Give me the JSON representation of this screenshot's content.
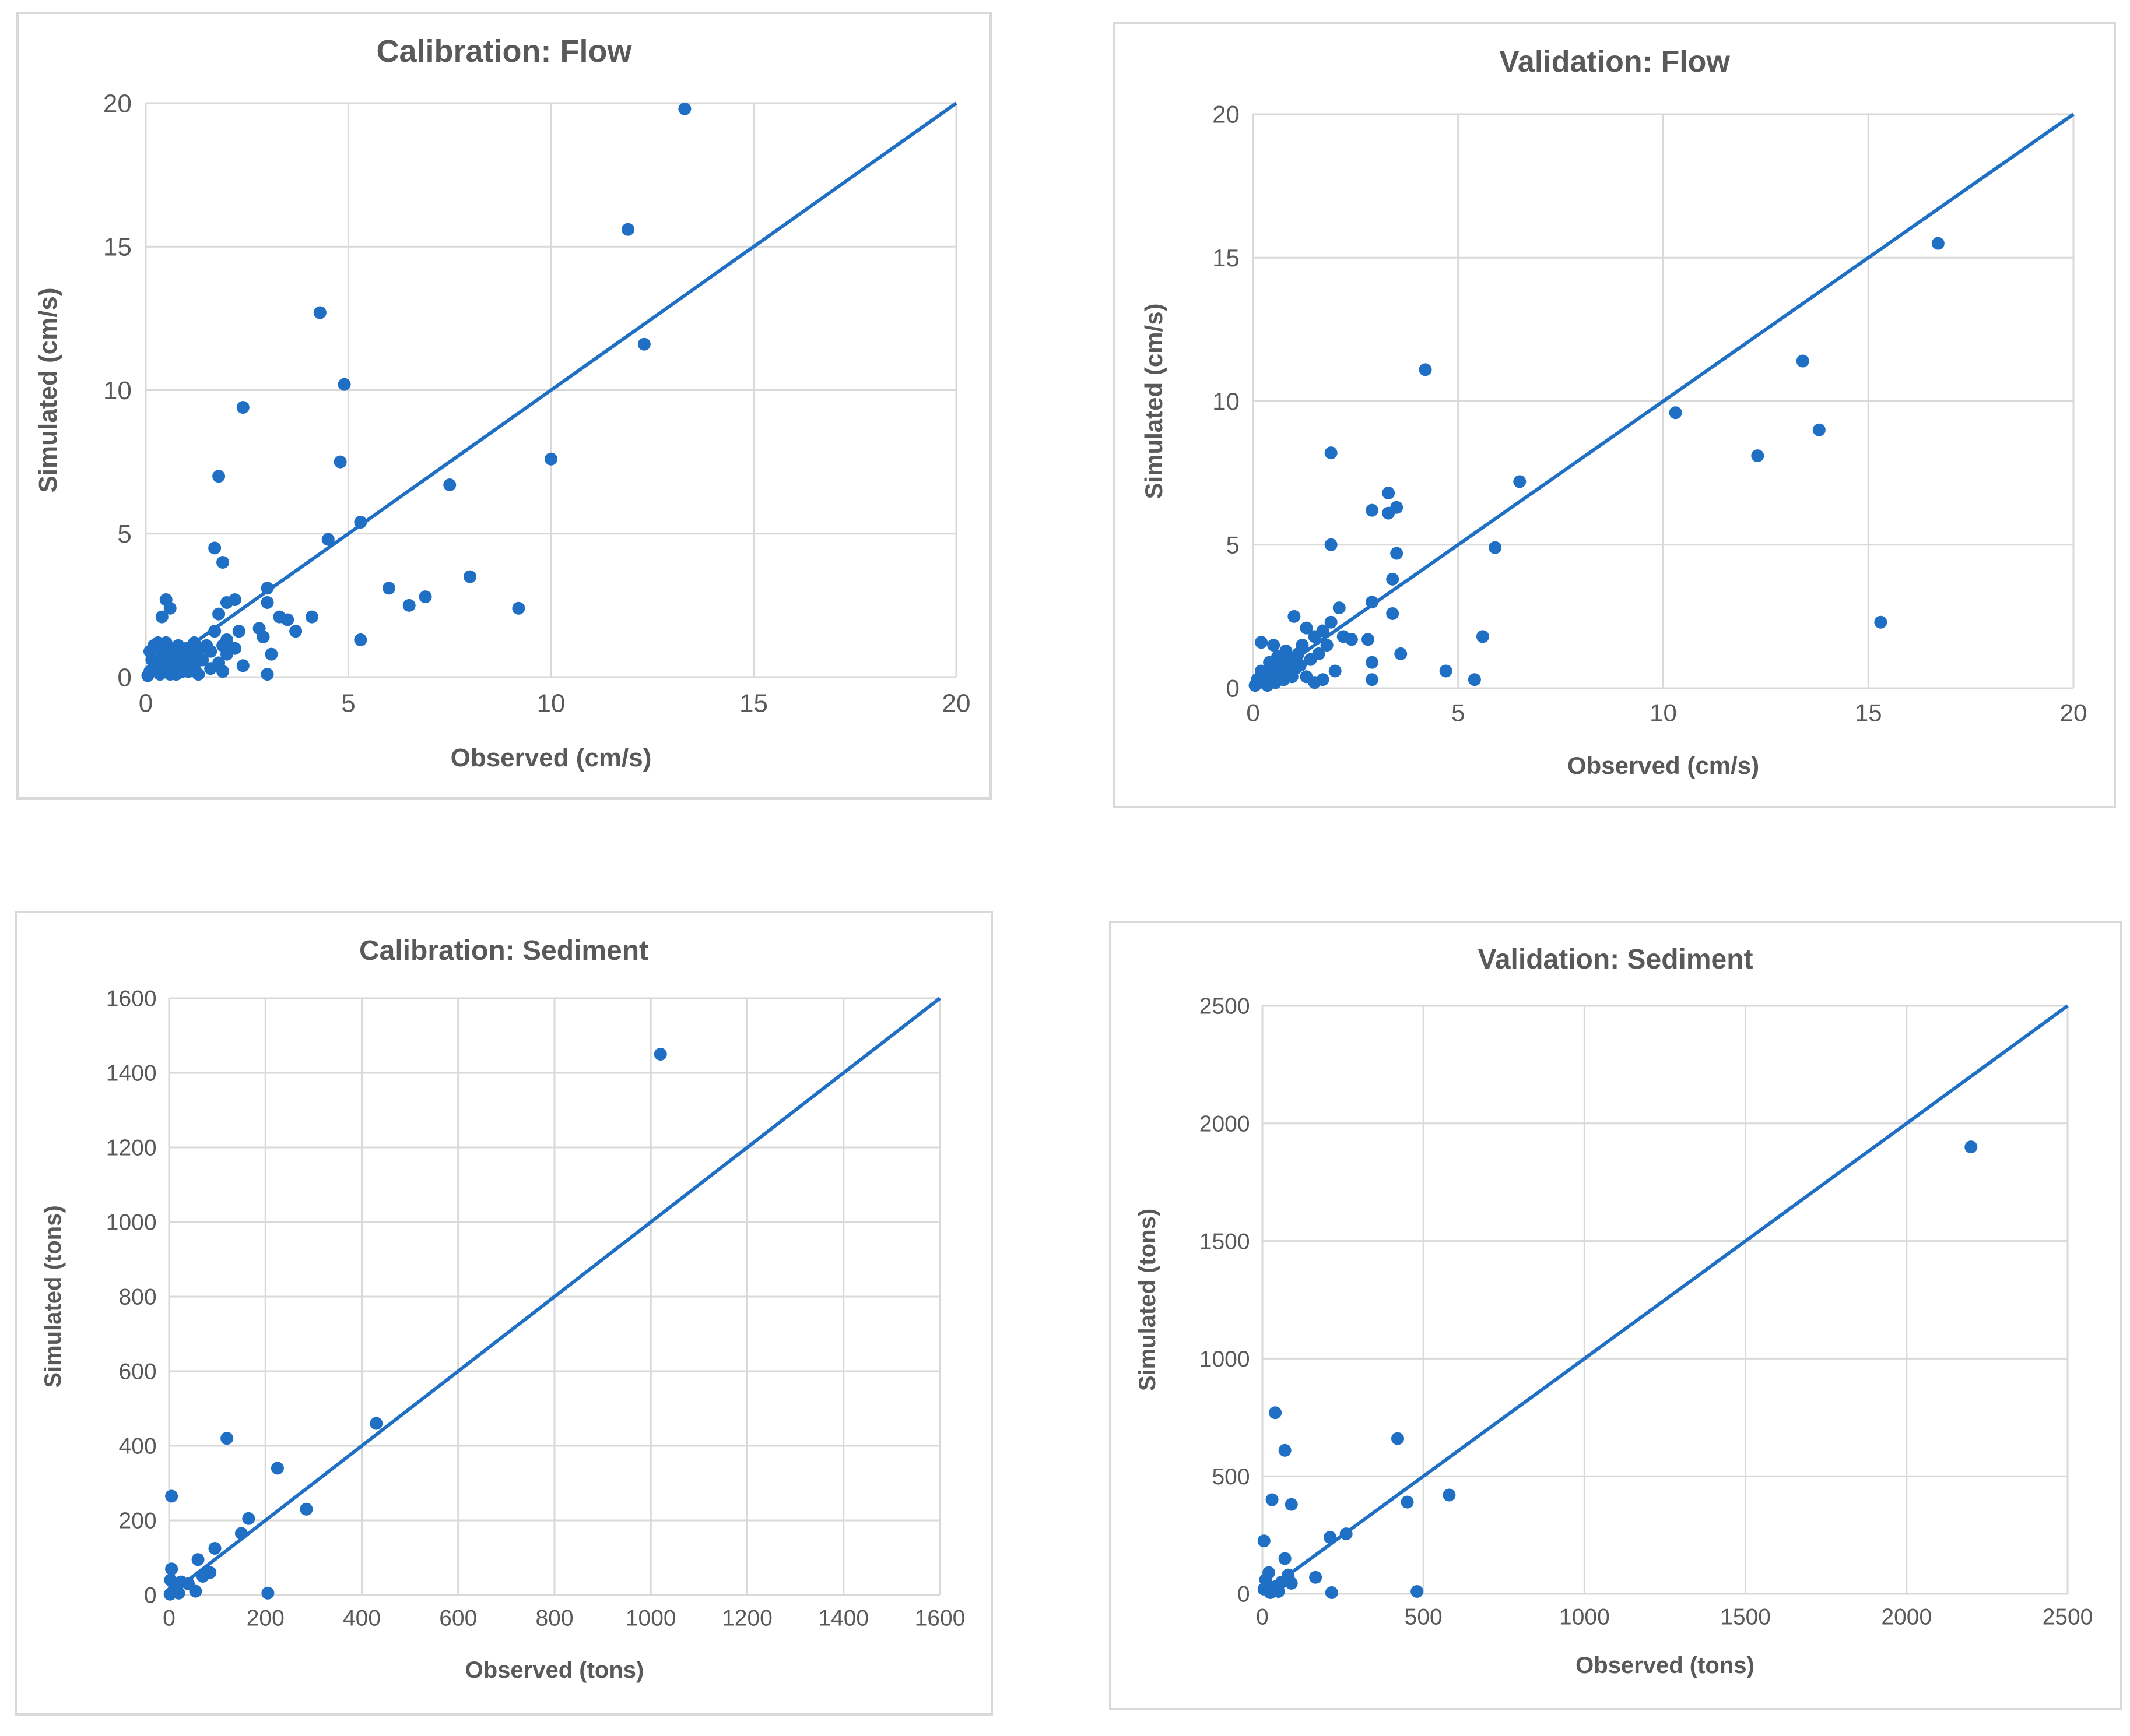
{
  "colors": {
    "series": "#1f6fc5",
    "grid": "#d9d9d9",
    "text": "#595959"
  },
  "chart_data": [
    {
      "id": "cal-flow",
      "type": "scatter",
      "title": "Calibration: Flow",
      "xlabel": "Observed  (cm/s)",
      "ylabel": "Simulated (cm/s)",
      "xlim": [
        0,
        20
      ],
      "ylim": [
        0,
        20
      ],
      "xticks": [
        0,
        5,
        10,
        15,
        20
      ],
      "yticks": [
        0,
        5,
        10,
        15,
        20
      ],
      "trendline": {
        "x": [
          0,
          20
        ],
        "y": [
          0,
          20
        ]
      },
      "points": [
        [
          13.3,
          19.8
        ],
        [
          11.9,
          15.6
        ],
        [
          12.3,
          11.6
        ],
        [
          4.3,
          12.7
        ],
        [
          2.4,
          9.4
        ],
        [
          4.9,
          10.2
        ],
        [
          4.8,
          7.5
        ],
        [
          1.8,
          7.0
        ],
        [
          10.0,
          7.6
        ],
        [
          7.5,
          6.7
        ],
        [
          8.0,
          3.5
        ],
        [
          9.2,
          2.4
        ],
        [
          5.3,
          5.4
        ],
        [
          4.5,
          4.8
        ],
        [
          1.7,
          4.5
        ],
        [
          1.9,
          4.0
        ],
        [
          6.0,
          3.1
        ],
        [
          6.9,
          2.8
        ],
        [
          6.5,
          2.5
        ],
        [
          5.3,
          1.3
        ],
        [
          3.0,
          3.1
        ],
        [
          3.0,
          2.6
        ],
        [
          3.3,
          2.1
        ],
        [
          3.5,
          2.0
        ],
        [
          4.1,
          2.1
        ],
        [
          3.7,
          1.6
        ],
        [
          2.2,
          2.7
        ],
        [
          2.0,
          2.6
        ],
        [
          1.8,
          2.2
        ],
        [
          0.5,
          2.7
        ],
        [
          0.6,
          2.4
        ],
        [
          0.4,
          2.1
        ],
        [
          2.8,
          1.7
        ],
        [
          2.9,
          1.4
        ],
        [
          2.3,
          1.6
        ],
        [
          3.1,
          0.8
        ],
        [
          3.0,
          0.1
        ],
        [
          2.0,
          1.3
        ],
        [
          1.7,
          1.6
        ],
        [
          1.5,
          1.1
        ],
        [
          1.3,
          0.9
        ],
        [
          1.1,
          0.7
        ],
        [
          1.0,
          1.0
        ],
        [
          0.9,
          0.8
        ],
        [
          0.8,
          1.1
        ],
        [
          0.7,
          0.6
        ],
        [
          0.6,
          0.9
        ],
        [
          0.5,
          1.2
        ],
        [
          0.4,
          0.7
        ],
        [
          0.3,
          1.0
        ],
        [
          0.2,
          0.4
        ],
        [
          0.1,
          0.2
        ],
        [
          0.05,
          0.05
        ],
        [
          0.15,
          0.6
        ],
        [
          0.25,
          0.3
        ],
        [
          0.35,
          0.1
        ],
        [
          0.45,
          0.5
        ],
        [
          0.55,
          0.2
        ],
        [
          0.65,
          0.4
        ],
        [
          0.75,
          0.1
        ],
        [
          0.85,
          0.3
        ],
        [
          0.95,
          0.5
        ],
        [
          1.05,
          0.2
        ],
        [
          1.2,
          0.4
        ],
        [
          1.4,
          0.6
        ],
        [
          1.6,
          0.3
        ],
        [
          1.8,
          0.5
        ],
        [
          2.0,
          0.8
        ],
        [
          2.2,
          1.0
        ],
        [
          1.6,
          0.9
        ],
        [
          1.9,
          1.1
        ],
        [
          1.2,
          1.2
        ],
        [
          0.3,
          1.2
        ],
        [
          0.1,
          0.9
        ],
        [
          0.2,
          1.1
        ],
        [
          0.6,
          0.1
        ],
        [
          0.9,
          0.2
        ],
        [
          1.3,
          0.1
        ],
        [
          1.9,
          0.2
        ],
        [
          2.4,
          0.4
        ]
      ]
    },
    {
      "id": "val-flow",
      "type": "scatter",
      "title": "Validation: Flow",
      "xlabel": "Observed (cm/s)",
      "ylabel": "Simulated (cm/s)",
      "xlim": [
        0,
        20
      ],
      "ylim": [
        0,
        20
      ],
      "xticks": [
        0,
        5,
        10,
        15,
        20
      ],
      "yticks": [
        0,
        5,
        10,
        15,
        20
      ],
      "trendline": {
        "x": [
          0,
          20
        ],
        "y": [
          0,
          20
        ]
      },
      "points": [
        [
          16.7,
          15.5
        ],
        [
          13.4,
          11.4
        ],
        [
          13.8,
          9.0
        ],
        [
          12.3,
          8.1
        ],
        [
          10.3,
          9.6
        ],
        [
          15.3,
          2.3
        ],
        [
          4.2,
          11.1
        ],
        [
          1.9,
          8.2
        ],
        [
          6.5,
          7.2
        ],
        [
          5.9,
          4.9
        ],
        [
          5.6,
          1.8
        ],
        [
          4.7,
          0.6
        ],
        [
          5.4,
          0.3
        ],
        [
          3.3,
          6.8
        ],
        [
          3.5,
          6.3
        ],
        [
          3.3,
          6.1
        ],
        [
          2.9,
          6.2
        ],
        [
          3.5,
          4.7
        ],
        [
          1.9,
          5.0
        ],
        [
          3.4,
          3.8
        ],
        [
          2.9,
          3.0
        ],
        [
          3.4,
          2.6
        ],
        [
          3.6,
          1.2
        ],
        [
          2.9,
          0.9
        ],
        [
          2.9,
          0.3
        ],
        [
          2.1,
          2.8
        ],
        [
          2.8,
          1.7
        ],
        [
          2.4,
          1.7
        ],
        [
          2.2,
          1.8
        ],
        [
          1.9,
          2.3
        ],
        [
          1.7,
          2.0
        ],
        [
          1.5,
          1.8
        ],
        [
          1.3,
          2.1
        ],
        [
          1.0,
          2.5
        ],
        [
          1.2,
          1.5
        ],
        [
          1.1,
          1.2
        ],
        [
          0.9,
          1.0
        ],
        [
          0.8,
          1.3
        ],
        [
          0.7,
          0.9
        ],
        [
          0.6,
          1.1
        ],
        [
          0.5,
          0.7
        ],
        [
          0.4,
          0.9
        ],
        [
          0.3,
          0.5
        ],
        [
          0.2,
          0.6
        ],
        [
          0.1,
          0.3
        ],
        [
          0.05,
          0.1
        ],
        [
          0.2,
          1.6
        ],
        [
          0.5,
          1.5
        ],
        [
          0.15,
          0.2
        ],
        [
          0.25,
          0.4
        ],
        [
          0.35,
          0.1
        ],
        [
          0.45,
          0.3
        ],
        [
          0.55,
          0.2
        ],
        [
          0.65,
          0.5
        ],
        [
          0.75,
          0.3
        ],
        [
          0.85,
          0.6
        ],
        [
          0.95,
          0.4
        ],
        [
          1.05,
          0.7
        ],
        [
          1.15,
          0.8
        ],
        [
          1.4,
          1.0
        ],
        [
          1.6,
          1.2
        ],
        [
          1.8,
          1.5
        ],
        [
          2.0,
          0.6
        ],
        [
          1.7,
          0.3
        ],
        [
          1.5,
          0.2
        ],
        [
          1.3,
          0.4
        ]
      ]
    },
    {
      "id": "cal-sed",
      "type": "scatter",
      "title": "Calibration: Sediment",
      "xlabel": "Observed (tons)",
      "ylabel": "Simulated (tons)",
      "xlim": [
        0,
        1600
      ],
      "ylim": [
        0,
        1600
      ],
      "xticks": [
        0,
        200,
        400,
        600,
        800,
        1000,
        1200,
        1400,
        1600
      ],
      "yticks": [
        0,
        200,
        400,
        600,
        800,
        1000,
        1200,
        1400,
        1600
      ],
      "trendline": {
        "x": [
          0,
          1600
        ],
        "y": [
          0,
          1600
        ]
      },
      "points": [
        [
          1020,
          1450
        ],
        [
          430,
          460
        ],
        [
          120,
          420
        ],
        [
          225,
          340
        ],
        [
          5,
          265
        ],
        [
          285,
          230
        ],
        [
          165,
          205
        ],
        [
          150,
          165
        ],
        [
          95,
          125
        ],
        [
          60,
          95
        ],
        [
          85,
          60
        ],
        [
          70,
          50
        ],
        [
          40,
          30
        ],
        [
          25,
          35
        ],
        [
          15,
          20
        ],
        [
          10,
          15
        ],
        [
          5,
          70
        ],
        [
          3,
          40
        ],
        [
          20,
          5
        ],
        [
          55,
          10
        ],
        [
          205,
          5
        ],
        [
          2,
          2
        ],
        [
          8,
          8
        ],
        [
          12,
          25
        ]
      ]
    },
    {
      "id": "val-sed",
      "type": "scatter",
      "title": "Validation: Sediment",
      "xlabel": "Observed (tons)",
      "ylabel": "Simulated (tons)",
      "xlim": [
        0,
        2500
      ],
      "ylim": [
        0,
        2500
      ],
      "xticks": [
        0,
        500,
        1000,
        1500,
        2000,
        2500
      ],
      "yticks": [
        0,
        500,
        1000,
        1500,
        2000,
        2500
      ],
      "trendline": {
        "x": [
          0,
          2500
        ],
        "y": [
          0,
          2500
        ]
      },
      "points": [
        [
          2200,
          1900
        ],
        [
          40,
          770
        ],
        [
          420,
          660
        ],
        [
          70,
          610
        ],
        [
          30,
          400
        ],
        [
          90,
          380
        ],
        [
          580,
          420
        ],
        [
          450,
          390
        ],
        [
          260,
          255
        ],
        [
          210,
          240
        ],
        [
          5,
          225
        ],
        [
          70,
          150
        ],
        [
          165,
          70
        ],
        [
          80,
          80
        ],
        [
          60,
          50
        ],
        [
          40,
          30
        ],
        [
          20,
          90
        ],
        [
          10,
          60
        ],
        [
          5,
          20
        ],
        [
          25,
          5
        ],
        [
          215,
          5
        ],
        [
          480,
          10
        ],
        [
          50,
          10
        ],
        [
          90,
          45
        ]
      ]
    }
  ]
}
